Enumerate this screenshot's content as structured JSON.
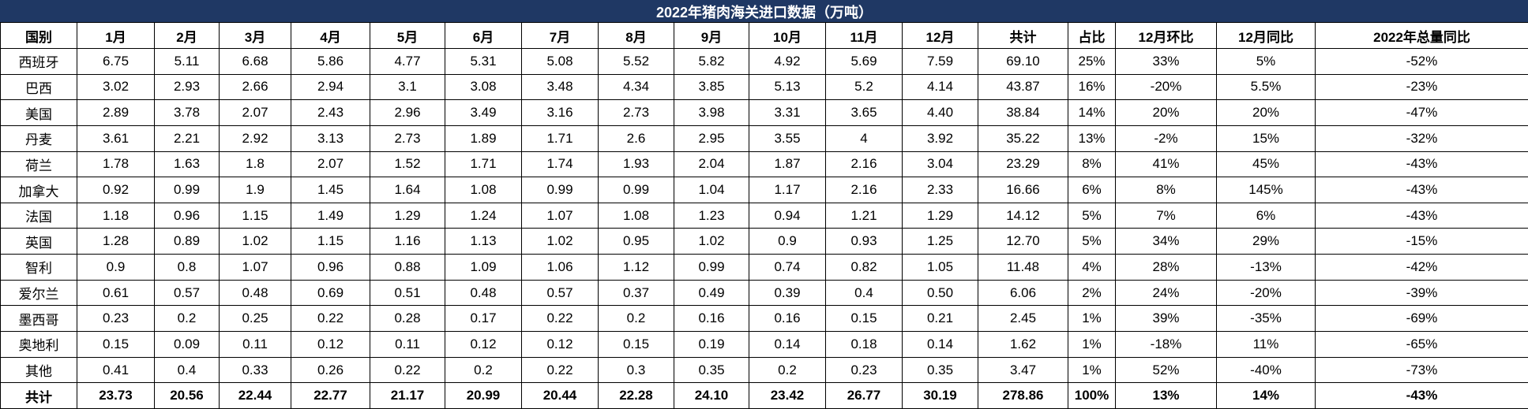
{
  "colors": {
    "title_bg": "#1F3864",
    "title_text": "#FFFFFF",
    "border": "#000000",
    "cell_bg": "#FFFFFF",
    "cell_text": "#000000"
  },
  "chart_data": {
    "type": "table",
    "title": "2022年猪肉海关进口数据（万吨）",
    "columns": [
      "国别",
      "1月",
      "2月",
      "3月",
      "4月",
      "5月",
      "6月",
      "7月",
      "8月",
      "9月",
      "10月",
      "11月",
      "12月",
      "共计",
      "占比",
      "12月环比",
      "12月同比",
      "2022年总量同比"
    ],
    "rows": [
      [
        "西班牙",
        "6.75",
        "5.11",
        "6.68",
        "5.86",
        "4.77",
        "5.31",
        "5.08",
        "5.52",
        "5.82",
        "4.92",
        "5.69",
        "7.59",
        "69.10",
        "25%",
        "33%",
        "5%",
        "-52%"
      ],
      [
        "巴西",
        "3.02",
        "2.93",
        "2.66",
        "2.94",
        "3.1",
        "3.08",
        "3.48",
        "4.34",
        "3.85",
        "5.13",
        "5.2",
        "4.14",
        "43.87",
        "16%",
        "-20%",
        "5.5%",
        "-23%"
      ],
      [
        "美国",
        "2.89",
        "3.78",
        "2.07",
        "2.43",
        "2.96",
        "3.49",
        "3.16",
        "2.73",
        "3.98",
        "3.31",
        "3.65",
        "4.40",
        "38.84",
        "14%",
        "20%",
        "20%",
        "-47%"
      ],
      [
        "丹麦",
        "3.61",
        "2.21",
        "2.92",
        "3.13",
        "2.73",
        "1.89",
        "1.71",
        "2.6",
        "2.95",
        "3.55",
        "4",
        "3.92",
        "35.22",
        "13%",
        "-2%",
        "15%",
        "-32%"
      ],
      [
        "荷兰",
        "1.78",
        "1.63",
        "1.8",
        "2.07",
        "1.52",
        "1.71",
        "1.74",
        "1.93",
        "2.04",
        "1.87",
        "2.16",
        "3.04",
        "23.29",
        "8%",
        "41%",
        "45%",
        "-43%"
      ],
      [
        "加拿大",
        "0.92",
        "0.99",
        "1.9",
        "1.45",
        "1.64",
        "1.08",
        "0.99",
        "0.99",
        "1.04",
        "1.17",
        "2.16",
        "2.33",
        "16.66",
        "6%",
        "8%",
        "145%",
        "-43%"
      ],
      [
        "法国",
        "1.18",
        "0.96",
        "1.15",
        "1.49",
        "1.29",
        "1.24",
        "1.07",
        "1.08",
        "1.23",
        "0.94",
        "1.21",
        "1.29",
        "14.12",
        "5%",
        "7%",
        "6%",
        "-43%"
      ],
      [
        "英国",
        "1.28",
        "0.89",
        "1.02",
        "1.15",
        "1.16",
        "1.13",
        "1.02",
        "0.95",
        "1.02",
        "0.9",
        "0.93",
        "1.25",
        "12.70",
        "5%",
        "34%",
        "29%",
        "-15%"
      ],
      [
        "智利",
        "0.9",
        "0.8",
        "1.07",
        "0.96",
        "0.88",
        "1.09",
        "1.06",
        "1.12",
        "0.99",
        "0.74",
        "0.82",
        "1.05",
        "11.48",
        "4%",
        "28%",
        "-13%",
        "-42%"
      ],
      [
        "爱尔兰",
        "0.61",
        "0.57",
        "0.48",
        "0.69",
        "0.51",
        "0.48",
        "0.57",
        "0.37",
        "0.49",
        "0.39",
        "0.4",
        "0.50",
        "6.06",
        "2%",
        "24%",
        "-20%",
        "-39%"
      ],
      [
        "墨西哥",
        "0.23",
        "0.2",
        "0.25",
        "0.22",
        "0.28",
        "0.17",
        "0.22",
        "0.2",
        "0.16",
        "0.16",
        "0.15",
        "0.21",
        "2.45",
        "1%",
        "39%",
        "-35%",
        "-69%"
      ],
      [
        "奥地利",
        "0.15",
        "0.09",
        "0.11",
        "0.12",
        "0.11",
        "0.12",
        "0.12",
        "0.15",
        "0.19",
        "0.14",
        "0.18",
        "0.14",
        "1.62",
        "1%",
        "-18%",
        "11%",
        "-65%"
      ],
      [
        "其他",
        "0.41",
        "0.4",
        "0.33",
        "0.26",
        "0.22",
        "0.2",
        "0.22",
        "0.3",
        "0.35",
        "0.2",
        "0.23",
        "0.35",
        "3.47",
        "1%",
        "52%",
        "-40%",
        "-73%"
      ]
    ],
    "total_row": [
      "共计",
      "23.73",
      "20.56",
      "22.44",
      "22.77",
      "21.17",
      "20.99",
      "20.44",
      "22.28",
      "24.10",
      "23.42",
      "26.77",
      "30.19",
      "278.86",
      "100%",
      "13%",
      "14%",
      "-43%"
    ]
  }
}
